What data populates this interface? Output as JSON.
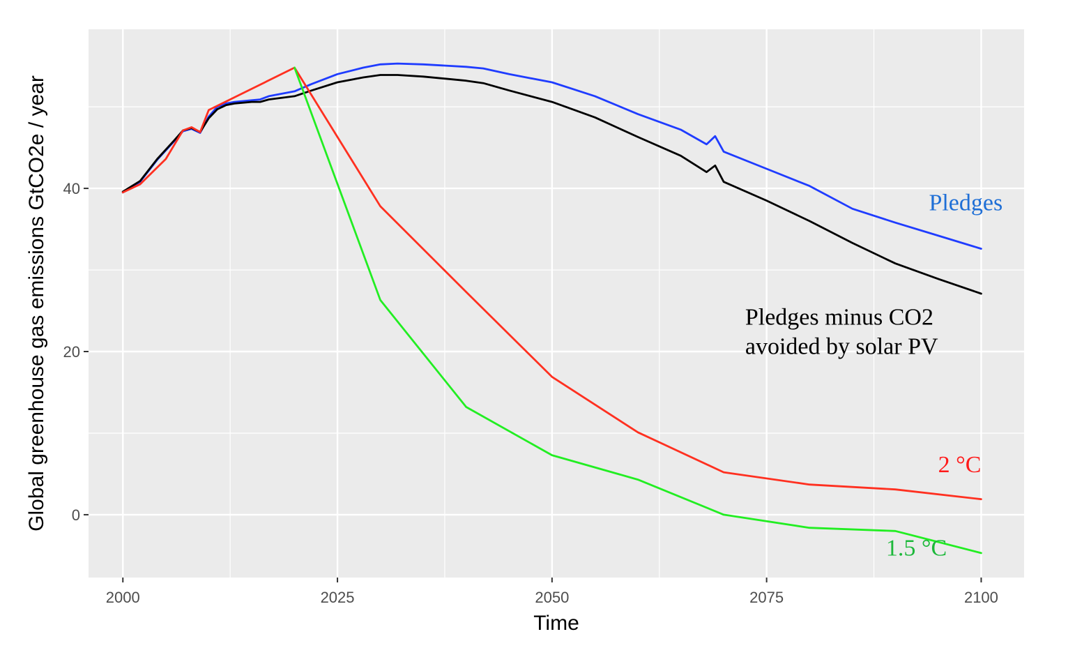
{
  "chart_data": {
    "type": "line",
    "title": "",
    "xlabel": "Time",
    "ylabel": "Global greenhouse gas emissions GtCO2e / year",
    "xlim": [
      1996,
      2105
    ],
    "ylim": [
      -7.7,
      59.5
    ],
    "x_ticks": [
      2000,
      2025,
      2050,
      2075,
      2100
    ],
    "x_tick_labels": [
      "2000",
      "2025",
      "2050",
      "2075",
      "2100"
    ],
    "y_ticks": [
      0,
      20,
      40
    ],
    "y_tick_labels": [
      "0",
      "20",
      "40"
    ],
    "grid": true,
    "legend": "none",
    "series": [
      {
        "name": "Pledges",
        "color": "#1f3cff",
        "label_color": "#1f6fd6",
        "points": [
          [
            2000,
            39.5
          ],
          [
            2002,
            40.8
          ],
          [
            2004,
            43.5
          ],
          [
            2006,
            45.8
          ],
          [
            2007,
            47.0
          ],
          [
            2008,
            47.3
          ],
          [
            2009,
            46.8
          ],
          [
            2010,
            48.8
          ],
          [
            2011,
            50.0
          ],
          [
            2012,
            50.4
          ],
          [
            2013,
            50.6
          ],
          [
            2015,
            50.8
          ],
          [
            2016,
            50.9
          ],
          [
            2017,
            51.3
          ],
          [
            2020,
            51.9
          ],
          [
            2022,
            52.8
          ],
          [
            2025,
            54.0
          ],
          [
            2028,
            54.8
          ],
          [
            2030,
            55.2
          ],
          [
            2032,
            55.3
          ],
          [
            2035,
            55.2
          ],
          [
            2040,
            54.9
          ],
          [
            2042,
            54.7
          ],
          [
            2045,
            54.0
          ],
          [
            2050,
            53.0
          ],
          [
            2055,
            51.3
          ],
          [
            2060,
            49.1
          ],
          [
            2065,
            47.2
          ],
          [
            2068,
            45.4
          ],
          [
            2069,
            46.4
          ],
          [
            2070,
            44.5
          ],
          [
            2075,
            42.4
          ],
          [
            2080,
            40.3
          ],
          [
            2085,
            37.5
          ],
          [
            2090,
            35.8
          ],
          [
            2095,
            34.2
          ],
          [
            2100,
            32.6
          ]
        ]
      },
      {
        "name": "Pledges minus CO2 avoided by solar PV",
        "color": "#000000",
        "label_color": "#000000",
        "points": [
          [
            2000,
            39.6
          ],
          [
            2002,
            40.9
          ],
          [
            2004,
            43.6
          ],
          [
            2006,
            45.9
          ],
          [
            2007,
            47.1
          ],
          [
            2008,
            47.4
          ],
          [
            2009,
            46.9
          ],
          [
            2010,
            48.6
          ],
          [
            2011,
            49.7
          ],
          [
            2012,
            50.2
          ],
          [
            2013,
            50.4
          ],
          [
            2015,
            50.6
          ],
          [
            2016,
            50.6
          ],
          [
            2017,
            50.9
          ],
          [
            2020,
            51.3
          ],
          [
            2022,
            52.0
          ],
          [
            2025,
            53.0
          ],
          [
            2028,
            53.6
          ],
          [
            2030,
            53.9
          ],
          [
            2032,
            53.9
          ],
          [
            2035,
            53.7
          ],
          [
            2040,
            53.2
          ],
          [
            2042,
            52.9
          ],
          [
            2045,
            52.0
          ],
          [
            2050,
            50.6
          ],
          [
            2055,
            48.7
          ],
          [
            2060,
            46.3
          ],
          [
            2065,
            44.0
          ],
          [
            2068,
            42.0
          ],
          [
            2069,
            42.8
          ],
          [
            2070,
            40.8
          ],
          [
            2075,
            38.5
          ],
          [
            2080,
            36.0
          ],
          [
            2085,
            33.3
          ],
          [
            2090,
            30.8
          ],
          [
            2095,
            28.9
          ],
          [
            2100,
            27.1
          ]
        ]
      },
      {
        "name": "2 °C",
        "color": "#ff3020",
        "label_color": "#ff1a1a",
        "points": [
          [
            2000,
            39.5
          ],
          [
            2002,
            40.5
          ],
          [
            2005,
            43.6
          ],
          [
            2007,
            47.1
          ],
          [
            2008,
            47.5
          ],
          [
            2009,
            46.9
          ],
          [
            2010,
            49.6
          ],
          [
            2020,
            54.8
          ],
          [
            2030,
            37.8
          ],
          [
            2040,
            27.3
          ],
          [
            2050,
            16.9
          ],
          [
            2060,
            10.1
          ],
          [
            2070,
            5.2
          ],
          [
            2080,
            3.7
          ],
          [
            2090,
            3.1
          ],
          [
            2100,
            1.9
          ]
        ]
      },
      {
        "name": "1.5 °C",
        "color": "#22ee22",
        "label_color": "#1cb83a",
        "points": [
          [
            2020,
            54.8
          ],
          [
            2030,
            26.3
          ],
          [
            2040,
            13.2
          ],
          [
            2050,
            7.3
          ],
          [
            2060,
            4.3
          ],
          [
            2070,
            0.0
          ],
          [
            2080,
            -1.6
          ],
          [
            2090,
            -2.0
          ],
          [
            2100,
            -4.7
          ]
        ]
      }
    ],
    "annotations": [
      {
        "text": "Pledges",
        "x": 2102.5,
        "y": 37.3,
        "anchor": "end",
        "color": "#1f6fd6"
      },
      {
        "lines": [
          "Pledges minus CO2",
          "avoided by solar PV"
        ],
        "x": 2072.5,
        "y": 23.3,
        "anchor": "start",
        "color": "#000000"
      },
      {
        "text": "2 °C",
        "x": 2100,
        "y": 5.2,
        "anchor": "end",
        "color": "#ff1a1a"
      },
      {
        "text": "1.5 °C",
        "x": 2096,
        "y": -5.0,
        "anchor": "end",
        "color": "#1cb83a"
      }
    ]
  }
}
